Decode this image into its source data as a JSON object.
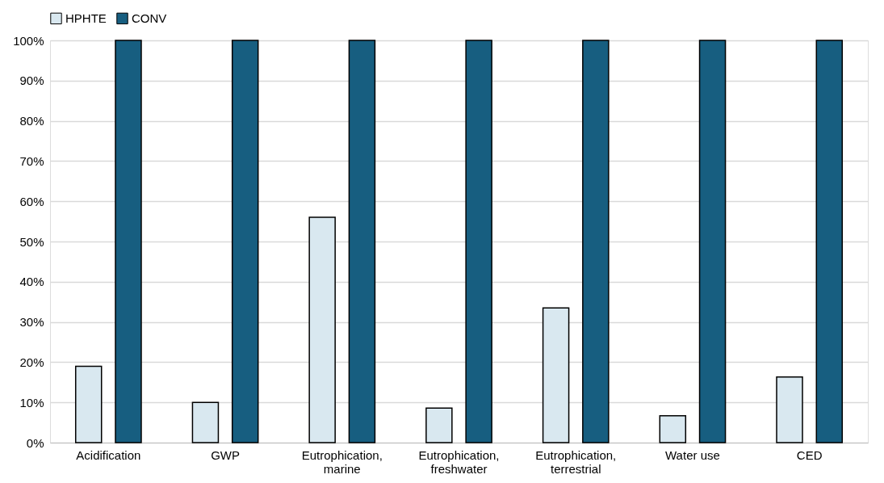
{
  "chart_data": {
    "type": "bar",
    "categories": [
      "Acidification",
      "GWP",
      "Eutrophication,\nmarine",
      "Eutrophication,\nfreshwater",
      "Eutrophication,\nterrestrial",
      "Water use",
      "CED"
    ],
    "series": [
      {
        "name": "HPHTE",
        "color": "#d9e8f0",
        "values": [
          19,
          10,
          56,
          8.6,
          33.5,
          6.7,
          16.3
        ]
      },
      {
        "name": "CONV",
        "color": "#175e80",
        "values": [
          100,
          100,
          100,
          100,
          100,
          100,
          100
        ]
      }
    ],
    "ylim": [
      0,
      100
    ],
    "yticks": [
      {
        "value": 0,
        "label": "0%"
      },
      {
        "value": 10,
        "label": "10%"
      },
      {
        "value": 20,
        "label": "20%"
      },
      {
        "value": 30,
        "label": "30%"
      },
      {
        "value": 40,
        "label": "40%"
      },
      {
        "value": 50,
        "label": "50%"
      },
      {
        "value": 60,
        "label": "60%"
      },
      {
        "value": 70,
        "label": "70%"
      },
      {
        "value": 80,
        "label": "80%"
      },
      {
        "value": 90,
        "label": "90%"
      },
      {
        "value": 100,
        "label": "100%"
      }
    ],
    "grid": "y",
    "legend": "top"
  }
}
